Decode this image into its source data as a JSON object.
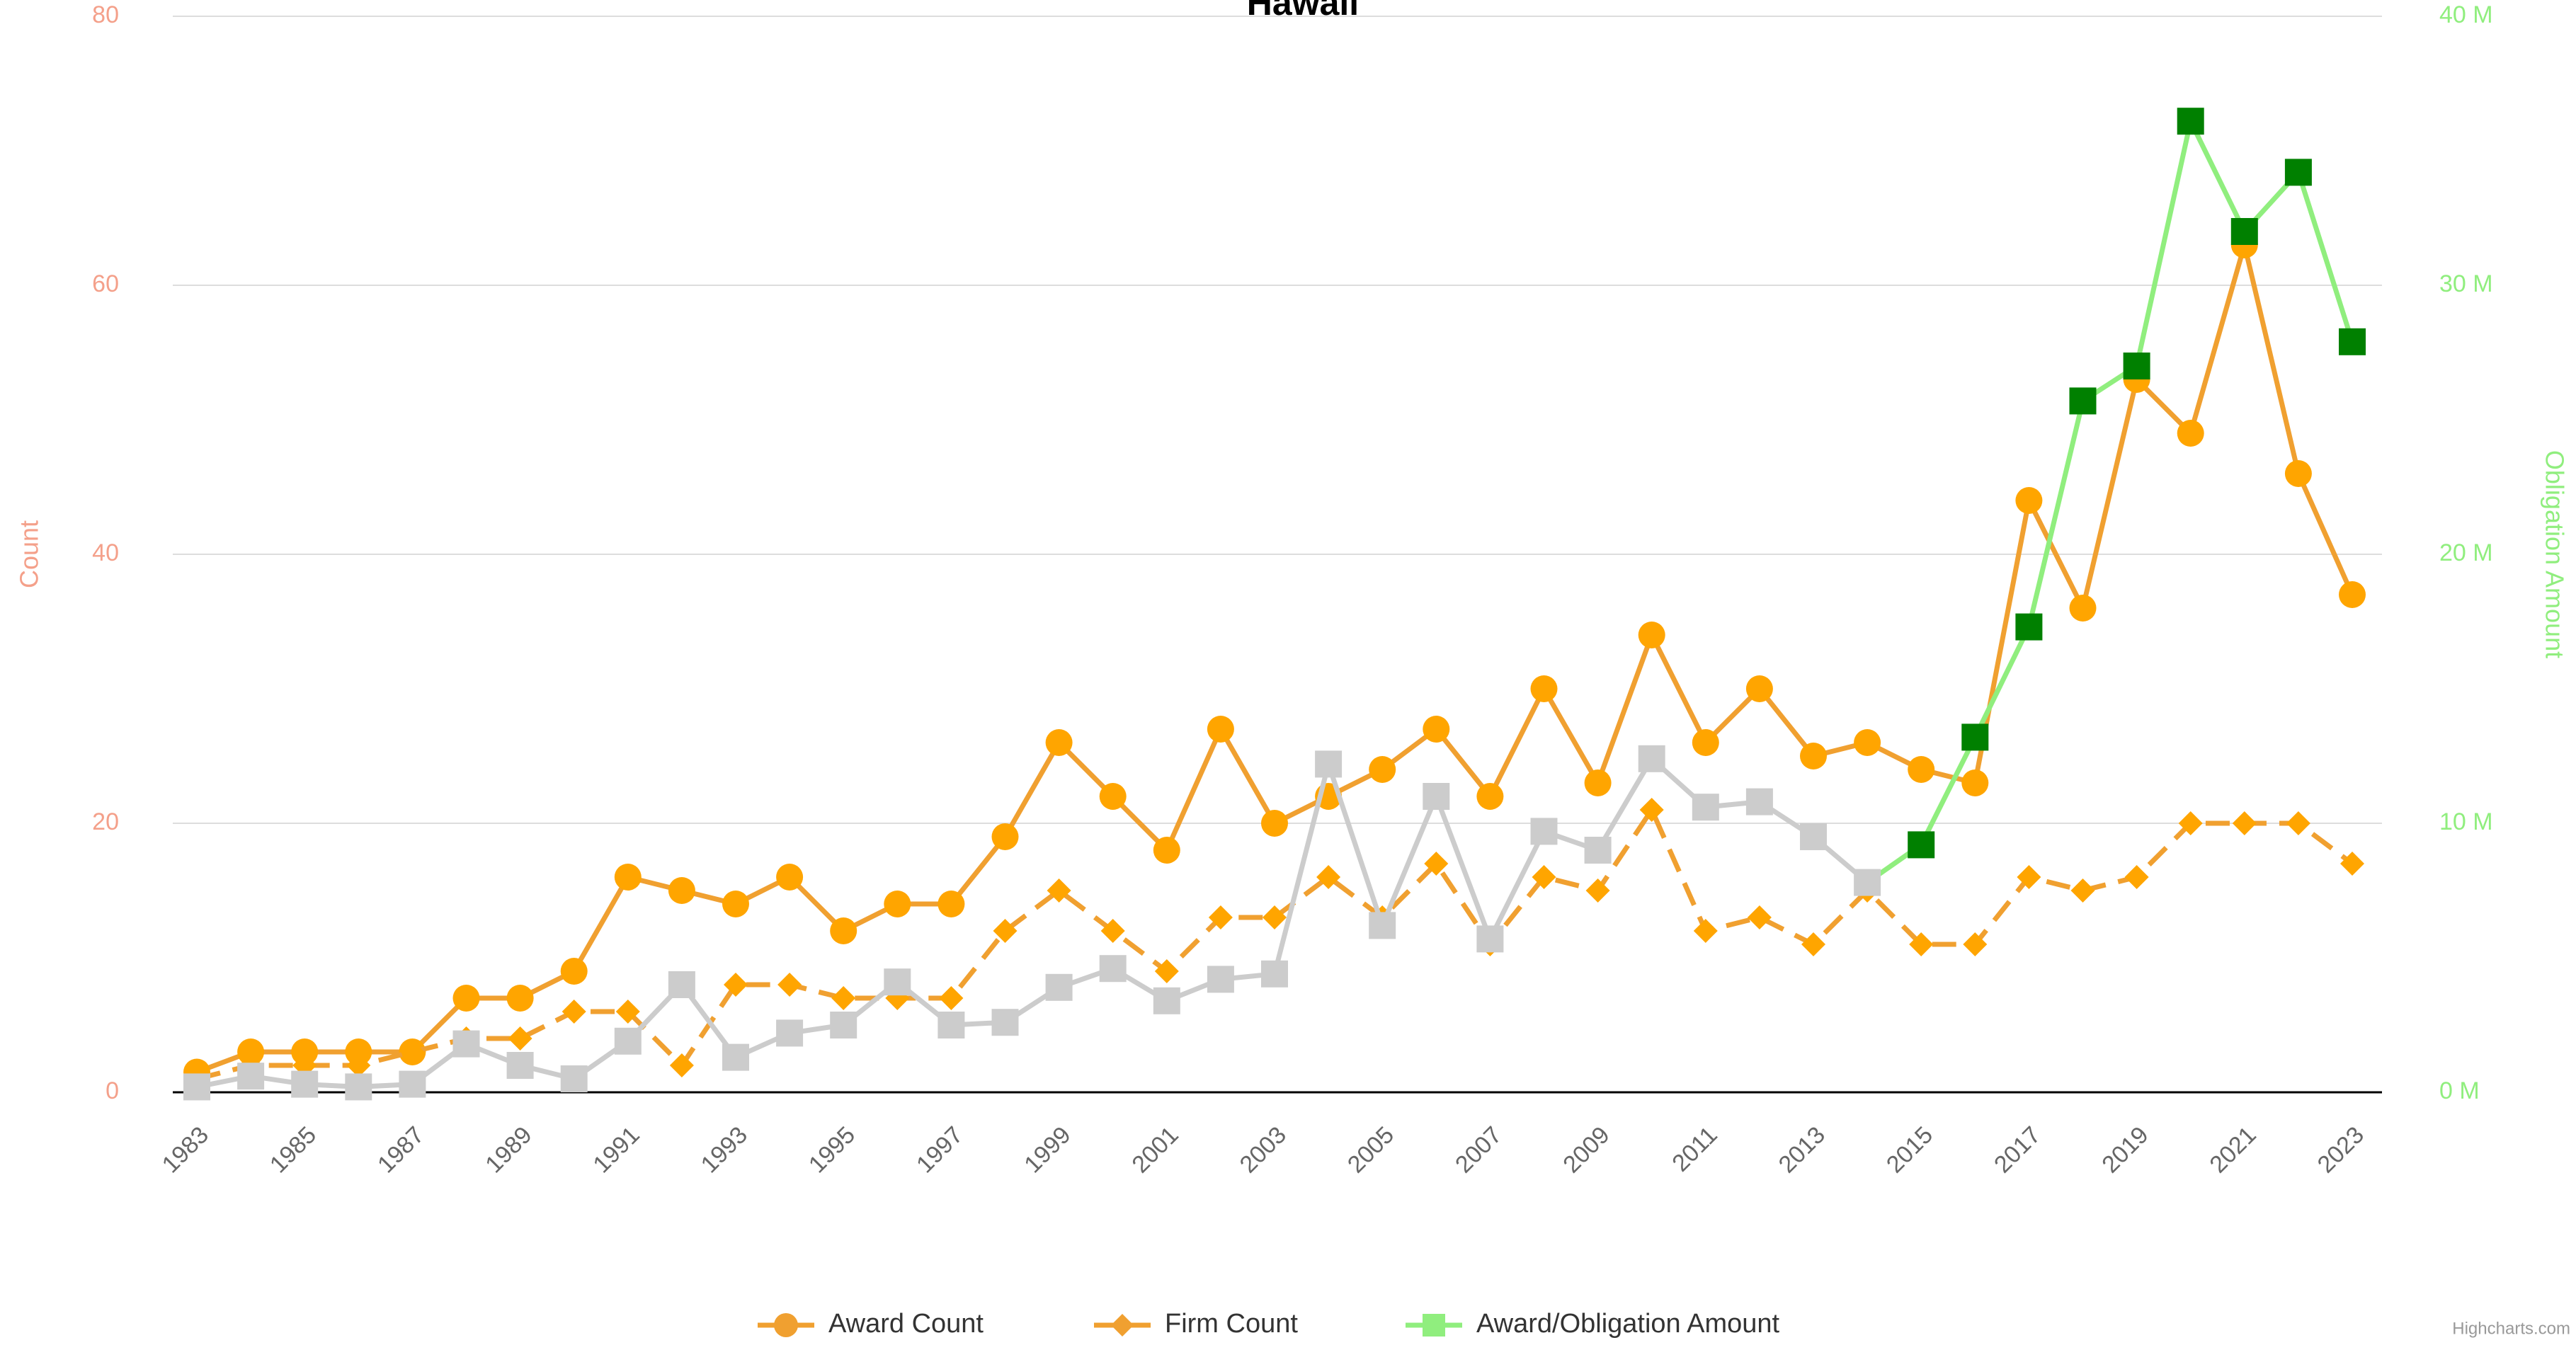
{
  "chart_data": {
    "type": "line",
    "title": "Hawaii",
    "y_label": "Count",
    "y2_label": "Obligation Amount",
    "credits": "Highcharts.com",
    "x": [
      1983,
      1984,
      1985,
      1986,
      1987,
      1988,
      1989,
      1990,
      1991,
      1992,
      1993,
      1994,
      1995,
      1996,
      1997,
      1998,
      1999,
      2000,
      2001,
      2002,
      2003,
      2004,
      2005,
      2006,
      2007,
      2008,
      2009,
      2010,
      2011,
      2012,
      2013,
      2014,
      2015,
      2016,
      2017,
      2018,
      2019,
      2020,
      2021,
      2022,
      2023
    ],
    "xlim": [
      1983,
      2023
    ],
    "xticks": [
      1983,
      1985,
      1987,
      1989,
      1991,
      1993,
      1995,
      1997,
      1999,
      2001,
      2003,
      2005,
      2007,
      2009,
      2011,
      2013,
      2015,
      2017,
      2019,
      2021,
      2023
    ],
    "ylim": [
      0,
      80
    ],
    "yticks": [
      0,
      20,
      40,
      60,
      80
    ],
    "y2lim": [
      0,
      40
    ],
    "y2ticks": [
      {
        "value": 0,
        "label": "0 M"
      },
      {
        "value": 10,
        "label": "10 M"
      },
      {
        "value": 20,
        "label": "20 M"
      },
      {
        "value": 30,
        "label": "30 M"
      },
      {
        "value": 40,
        "label": "40 M"
      }
    ],
    "grid": true,
    "legend": "bottom",
    "series": [
      {
        "name": "Award Count",
        "color": "#f0a030",
        "marker_color": "#ffa500",
        "marker": "circle",
        "dash": false,
        "values": [
          1.5,
          3,
          3,
          3,
          3,
          7,
          7,
          9,
          16,
          15,
          14,
          16,
          12,
          14,
          14,
          19,
          26,
          22,
          18,
          27,
          20,
          22,
          24,
          27,
          22,
          30,
          23,
          34,
          26,
          30,
          25,
          26,
          24,
          23,
          44,
          36,
          53,
          49,
          63,
          46,
          37
        ]
      },
      {
        "name": "Firm Count",
        "color": "#f0a030",
        "marker_color": "#ffa500",
        "marker": "diamond",
        "dash": true,
        "values": [
          1,
          2,
          2,
          2,
          3,
          4,
          4,
          6,
          6,
          2,
          8,
          8,
          7,
          7,
          7,
          12,
          15,
          12,
          9,
          13,
          13,
          16,
          13,
          17,
          11,
          16,
          15,
          21,
          12,
          13,
          11,
          15,
          11,
          11,
          16,
          15,
          16,
          20,
          20,
          20,
          17
        ]
      },
      {
        "name": "Award/Obligation Amount",
        "color": "#90ee7e",
        "marker_color": "#008000",
        "marker": "square",
        "dash": false,
        "axis": "y2",
        "zone_until_x": 2015,
        "zone_color": "#cccccc",
        "values": [
          0.2,
          0.6,
          0.3,
          0.2,
          0.3,
          1.8,
          1.0,
          0.5,
          1.9,
          4.0,
          1.3,
          2.2,
          2.5,
          4.1,
          2.5,
          2.6,
          3.9,
          4.6,
          3.4,
          4.2,
          4.4,
          12.2,
          6.2,
          11.0,
          5.7,
          9.7,
          9.0,
          12.4,
          10.6,
          10.8,
          9.5,
          7.8,
          9.2,
          13.2,
          17.3,
          25.7,
          27.0,
          36.1,
          32.0,
          34.2,
          27.9
        ]
      }
    ]
  }
}
